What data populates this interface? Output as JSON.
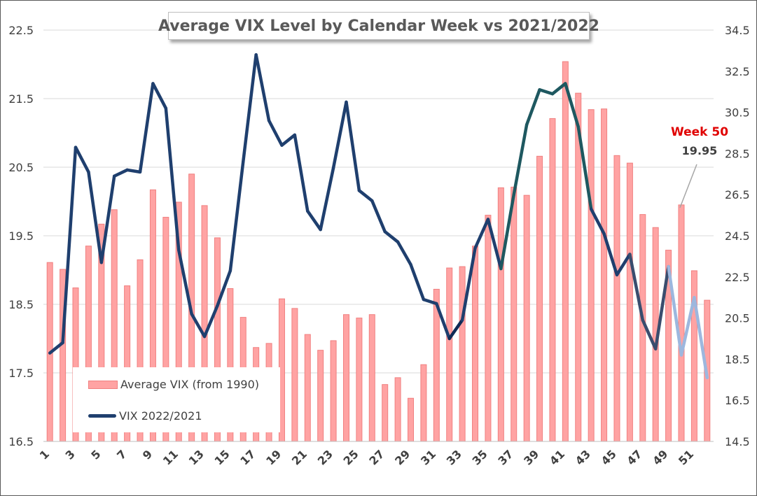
{
  "chart_data": {
    "type": "bar+line",
    "title": "Average VIX Level by Calendar Week vs 2021/2022",
    "xlabel": "",
    "ylabel": "",
    "x": [
      1,
      2,
      3,
      4,
      5,
      6,
      7,
      8,
      9,
      10,
      11,
      12,
      13,
      14,
      15,
      16,
      17,
      18,
      19,
      20,
      21,
      22,
      23,
      24,
      25,
      26,
      27,
      28,
      29,
      30,
      31,
      32,
      33,
      34,
      35,
      36,
      37,
      38,
      39,
      40,
      41,
      42,
      43,
      44,
      45,
      46,
      47,
      48,
      49,
      50,
      51,
      52
    ],
    "x_tick_labels": [
      "1",
      "3",
      "5",
      "7",
      "9",
      "11",
      "13",
      "15",
      "17",
      "19",
      "21",
      "23",
      "25",
      "27",
      "29",
      "31",
      "33",
      "35",
      "37",
      "39",
      "41",
      "43",
      "45",
      "47",
      "49",
      "51"
    ],
    "y_left": {
      "range": [
        16.5,
        22.5
      ],
      "ticks": [
        "16.5",
        "17.5",
        "18.5",
        "19.5",
        "20.5",
        "21.5",
        "22.5"
      ]
    },
    "y_right": {
      "range": [
        14.5,
        34.5
      ],
      "ticks": [
        "14.5",
        "16.5",
        "18.5",
        "20.5",
        "22.5",
        "24.5",
        "26.5",
        "28.5",
        "30.5",
        "32.5",
        "34.5"
      ]
    },
    "grid": "horizontal",
    "legend_position": "bottom-left",
    "series": [
      {
        "name": "Average VIX (from 1990)",
        "type": "bar",
        "axis": "left",
        "color": "#ffa3a3",
        "edge_color": "#f08080",
        "values": [
          19.11,
          19.01,
          18.74,
          19.35,
          19.67,
          19.88,
          18.77,
          19.15,
          20.17,
          19.77,
          19.99,
          20.4,
          19.94,
          19.47,
          18.73,
          18.31,
          17.87,
          17.93,
          18.58,
          18.44,
          18.06,
          17.83,
          17.97,
          18.35,
          18.3,
          18.35,
          17.33,
          17.43,
          17.13,
          17.62,
          18.72,
          19.03,
          19.05,
          19.35,
          19.8,
          20.2,
          20.21,
          20.09,
          20.66,
          21.21,
          22.04,
          21.58,
          21.34,
          21.35,
          20.67,
          20.56,
          19.81,
          19.62,
          19.29,
          19.95,
          18.99,
          18.56
        ]
      },
      {
        "name": "VIX 2022/2021",
        "type": "line",
        "axis": "right",
        "color": "#1f3f6e",
        "values": [
          18.8,
          19.3,
          28.8,
          27.6,
          23.2,
          27.4,
          27.7,
          27.6,
          31.9,
          30.7,
          23.8,
          20.7,
          19.6,
          21.1,
          22.8,
          28.1,
          33.3,
          30.1,
          28.9,
          29.4,
          25.7,
          24.8,
          27.8,
          31.0,
          26.7,
          26.2,
          24.7,
          24.2,
          23.1,
          21.4,
          21.2,
          19.5,
          20.4,
          23.9,
          25.3,
          22.9,
          26.5,
          29.9,
          31.6,
          31.4,
          31.9,
          29.8,
          25.8,
          24.6,
          22.6,
          23.6,
          20.4,
          19.0,
          23.0,
          18.7,
          21.5,
          17.6
        ]
      }
    ],
    "annotation": {
      "label": "Week 50",
      "value": "19.95",
      "week": 50
    }
  }
}
